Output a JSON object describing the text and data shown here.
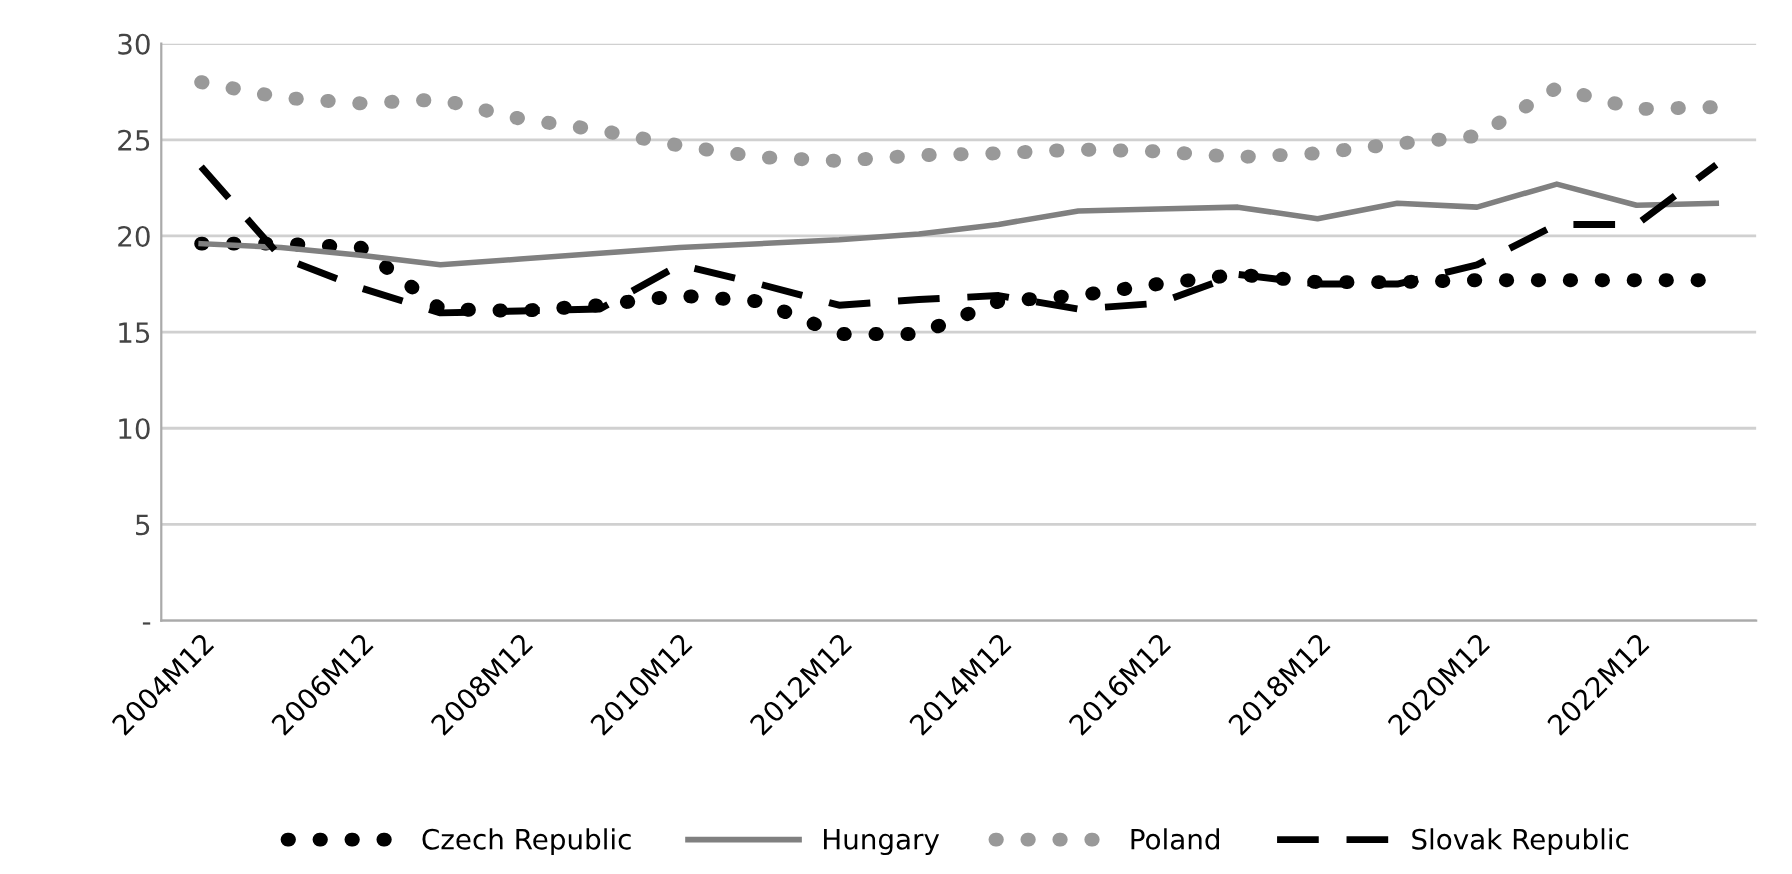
{
  "chart_data": {
    "type": "line",
    "categories": [
      "2004M12",
      null,
      "2006M12",
      null,
      "2008M12",
      null,
      "2010M12",
      null,
      "2012M12",
      null,
      "2014M12",
      null,
      "2016M12",
      null,
      "2018M12",
      null,
      "2020M12",
      null,
      "2022M12",
      null
    ],
    "series": [
      {
        "name": "Czech Republic",
        "color": "#000000",
        "line_style": "dotted",
        "values": [
          19.6,
          19.6,
          19.4,
          16.2,
          16.1,
          16.4,
          16.9,
          16.6,
          14.9,
          14.9,
          16.6,
          16.9,
          17.5,
          18.0,
          17.6,
          17.6,
          17.7,
          17.7,
          17.7,
          17.7
        ]
      },
      {
        "name": "Hungary",
        "color": "#808080",
        "line_style": "solid",
        "values": [
          19.6,
          19.4,
          19.0,
          18.5,
          18.8,
          19.1,
          19.4,
          19.6,
          19.8,
          20.1,
          20.6,
          21.3,
          21.4,
          21.5,
          20.9,
          21.7,
          21.5,
          22.7,
          21.6,
          21.7
        ]
      },
      {
        "name": "Poland",
        "color": "#999999",
        "line_style": "dotted",
        "values": [
          28.0,
          27.2,
          26.9,
          27.1,
          26.1,
          25.5,
          24.7,
          24.1,
          23.9,
          24.2,
          24.3,
          24.5,
          24.4,
          24.1,
          24.3,
          24.8,
          25.2,
          27.7,
          26.6,
          26.7
        ]
      },
      {
        "name": "Slovak Republic",
        "color": "#000000",
        "line_style": "dashed",
        "values": [
          23.6,
          18.9,
          17.3,
          16.0,
          16.1,
          16.2,
          18.5,
          17.5,
          16.4,
          16.7,
          16.9,
          16.2,
          16.5,
          18.0,
          17.5,
          17.5,
          18.5,
          20.6,
          20.6,
          23.7
        ]
      }
    ],
    "ylim": [
      0,
      30
    ],
    "yticks": [
      {
        "value": 0,
        "label": "-"
      },
      5,
      10,
      15,
      20,
      25,
      30
    ],
    "grid": "y",
    "legend": "bottom",
    "marker": "none"
  }
}
